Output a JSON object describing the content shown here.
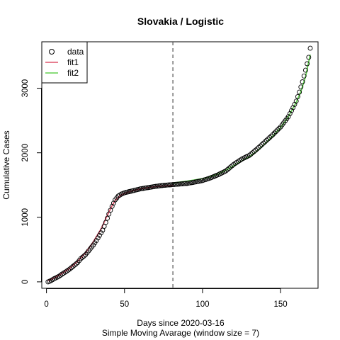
{
  "chart_data": {
    "type": "scatter",
    "title": "Slovakia / Logistic",
    "xlabel": "Days since 2020-03-16",
    "subtitle": "Simple Moving Avarage (window size = 7)",
    "ylabel": "Cumulative Cases",
    "xlim": [
      -3,
      174
    ],
    "ylim": [
      -100,
      3720
    ],
    "x_ticks": [
      0,
      50,
      100,
      150
    ],
    "y_ticks": [
      0,
      1000,
      2000,
      3000
    ],
    "vline": {
      "x": 81,
      "style": "dashed",
      "color": "#555555"
    },
    "legend": {
      "position": "top-left",
      "entries": [
        {
          "label": "data",
          "symbol": "circle-open",
          "color": "#000000"
        },
        {
          "label": "fit1",
          "symbol": "line",
          "color": "#DF536B"
        },
        {
          "label": "fit2",
          "symbol": "line",
          "color": "#61D04F"
        }
      ]
    },
    "series": [
      {
        "name": "data",
        "kind": "points",
        "color": "#000000",
        "x_range": [
          1,
          169
        ],
        "points": [
          [
            1,
            0
          ],
          [
            3,
            20
          ],
          [
            5,
            50
          ],
          [
            8,
            85
          ],
          [
            10,
            120
          ],
          [
            12,
            150
          ],
          [
            15,
            200
          ],
          [
            18,
            260
          ],
          [
            20,
            300
          ],
          [
            22,
            360
          ],
          [
            25,
            420
          ],
          [
            27,
            480
          ],
          [
            30,
            570
          ],
          [
            32,
            640
          ],
          [
            34,
            720
          ],
          [
            36,
            800
          ],
          [
            38,
            920
          ],
          [
            40,
            1050
          ],
          [
            42,
            1170
          ],
          [
            44,
            1270
          ],
          [
            46,
            1330
          ],
          [
            48,
            1360
          ],
          [
            50,
            1380
          ],
          [
            55,
            1410
          ],
          [
            60,
            1440
          ],
          [
            65,
            1460
          ],
          [
            70,
            1480
          ],
          [
            75,
            1495
          ],
          [
            80,
            1505
          ],
          [
            85,
            1515
          ],
          [
            90,
            1525
          ],
          [
            95,
            1545
          ],
          [
            100,
            1570
          ],
          [
            105,
            1610
          ],
          [
            110,
            1660
          ],
          [
            115,
            1720
          ],
          [
            120,
            1820
          ],
          [
            125,
            1900
          ],
          [
            130,
            1960
          ],
          [
            135,
            2060
          ],
          [
            140,
            2170
          ],
          [
            145,
            2280
          ],
          [
            150,
            2400
          ],
          [
            155,
            2560
          ],
          [
            158,
            2700
          ],
          [
            160,
            2800
          ],
          [
            162,
            2940
          ],
          [
            164,
            3100
          ],
          [
            166,
            3280
          ],
          [
            168,
            3480
          ],
          [
            169,
            3620
          ]
        ]
      },
      {
        "name": "fit1",
        "kind": "line",
        "color": "#DF536B",
        "points": [
          [
            1,
            20
          ],
          [
            5,
            60
          ],
          [
            10,
            130
          ],
          [
            15,
            210
          ],
          [
            20,
            320
          ],
          [
            25,
            450
          ],
          [
            30,
            620
          ],
          [
            35,
            820
          ],
          [
            38,
            980
          ],
          [
            40,
            1080
          ],
          [
            42,
            1180
          ],
          [
            44,
            1260
          ],
          [
            46,
            1310
          ],
          [
            48,
            1350
          ],
          [
            50,
            1370
          ],
          [
            55,
            1410
          ],
          [
            60,
            1440
          ],
          [
            65,
            1460
          ],
          [
            70,
            1475
          ],
          [
            75,
            1485
          ],
          [
            81,
            1495
          ]
        ]
      },
      {
        "name": "fit2",
        "kind": "line",
        "color": "#61D04F",
        "points": [
          [
            81,
            1530
          ],
          [
            85,
            1545
          ],
          [
            90,
            1560
          ],
          [
            95,
            1580
          ],
          [
            100,
            1600
          ],
          [
            105,
            1630
          ],
          [
            110,
            1670
          ],
          [
            115,
            1730
          ],
          [
            120,
            1800
          ],
          [
            125,
            1870
          ],
          [
            130,
            1940
          ],
          [
            135,
            2030
          ],
          [
            140,
            2140
          ],
          [
            145,
            2260
          ],
          [
            150,
            2390
          ],
          [
            155,
            2560
          ],
          [
            160,
            2780
          ],
          [
            163,
            2950
          ],
          [
            166,
            3180
          ],
          [
            169,
            3520
          ]
        ]
      }
    ]
  }
}
